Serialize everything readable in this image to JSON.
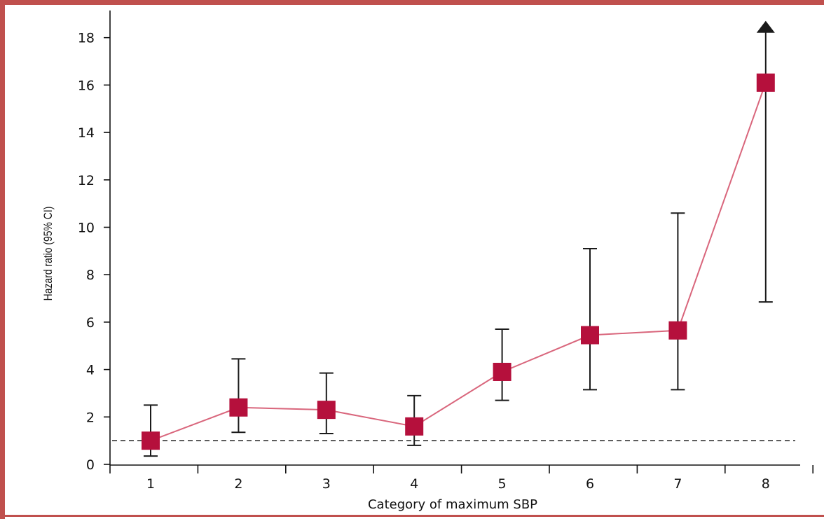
{
  "chart_data": {
    "type": "line",
    "title": "",
    "xlabel": "Category of maximum SBP",
    "ylabel": "Hazard ratio (95% CI)",
    "categories": [
      "1",
      "2",
      "3",
      "4",
      "5",
      "6",
      "7",
      "8"
    ],
    "ylim": [
      0,
      19
    ],
    "yticks": [
      0,
      2,
      4,
      6,
      8,
      10,
      12,
      14,
      16,
      18
    ],
    "series": [
      {
        "values": [
          1.0,
          2.4,
          2.3,
          1.6,
          3.9,
          5.45,
          5.65,
          16.1
        ],
        "ci_lower": [
          0.35,
          1.35,
          1.3,
          0.8,
          2.7,
          3.15,
          3.15,
          6.85
        ],
        "ci_upper": [
          2.5,
          4.45,
          3.85,
          2.9,
          5.7,
          9.1,
          10.6,
          18.5
        ],
        "ci_upper_arrow": [
          false,
          false,
          false,
          false,
          false,
          false,
          false,
          true
        ]
      }
    ],
    "reference_line": 1,
    "grid": false,
    "colors": {
      "marker": "#b5103c",
      "line": "#d9667c",
      "errorbar": "#1a1a1a",
      "reference": "#222222",
      "frame": "#c0504d"
    }
  }
}
